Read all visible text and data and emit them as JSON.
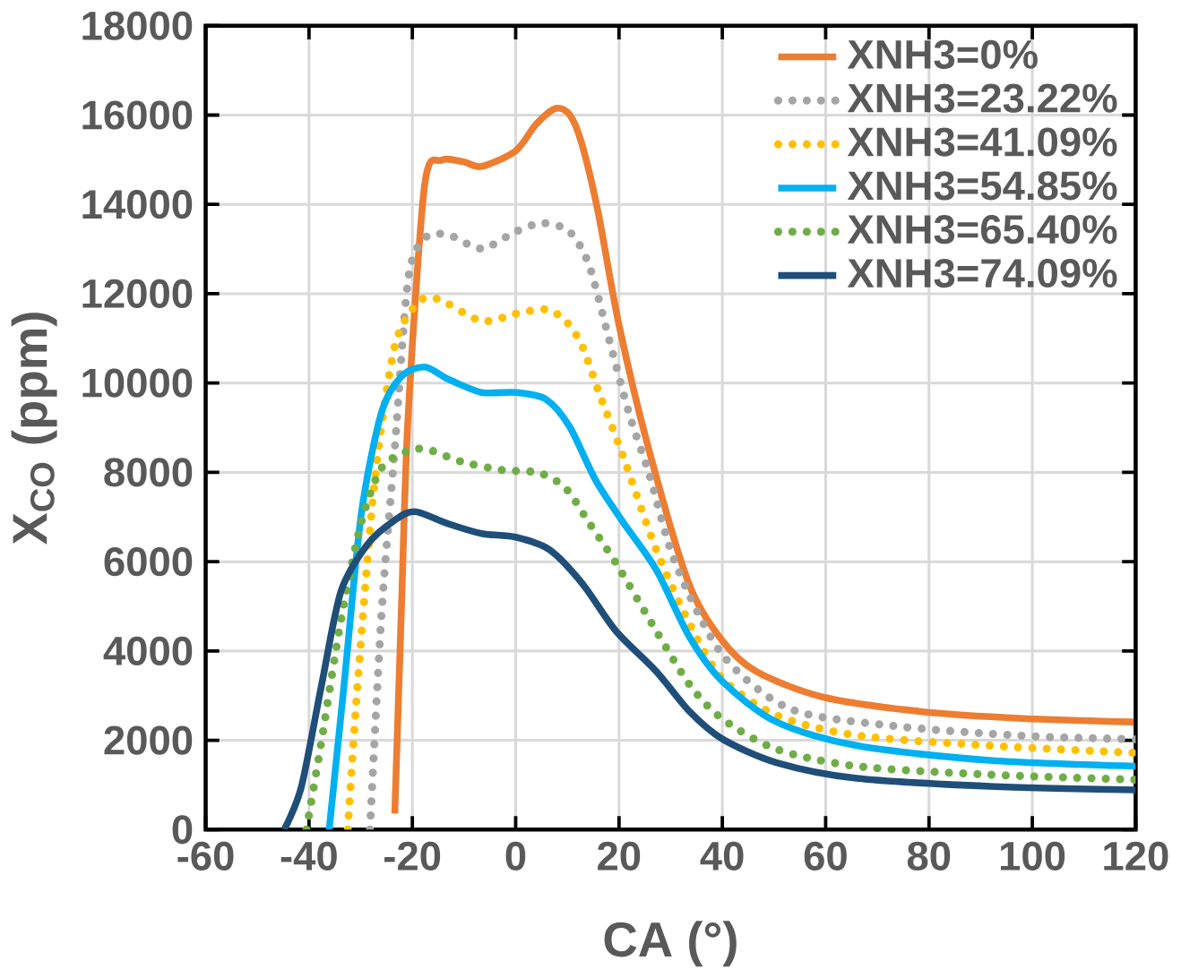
{
  "chart_data": {
    "type": "line",
    "xlabel": "CA (°)",
    "ylabel": "X$_{CO}$ (ppm)",
    "xlim": [
      -60,
      120
    ],
    "xticks": [
      -60,
      -40,
      -20,
      0,
      20,
      40,
      60,
      80,
      100,
      120
    ],
    "ylim": [
      0,
      18000
    ],
    "yticks": [
      0,
      2000,
      4000,
      6000,
      8000,
      10000,
      12000,
      14000,
      16000,
      18000
    ],
    "grid": true,
    "legend": "top right",
    "marker": "none",
    "series": [
      {
        "name": "XNH3=0%",
        "color": "#ed7d31",
        "line_style": "solid",
        "x": [
          -23.4,
          -22.1,
          -20.8,
          -17.6,
          -14.4,
          -10,
          -6.6,
          0,
          4,
          7.8,
          10.5,
          12.8,
          16,
          20,
          25.7,
          33.5,
          40,
          46.5,
          59.4,
          78.8,
          98.2,
          119.6
        ],
        "values": [
          360,
          5000,
          9300,
          14450,
          14990,
          14950,
          14850,
          15200,
          15800,
          16150,
          16000,
          15360,
          13800,
          11300,
          8545,
          5515,
          4230,
          3545,
          2970,
          2640,
          2490,
          2410
        ]
      },
      {
        "name": "XNH3=23.22%",
        "color": "#a5a5a5",
        "line_style": "dotted",
        "x": [
          -28.2,
          -26.0,
          -23.4,
          -20.8,
          -17.6,
          -13.1,
          -6.6,
          0,
          5.2,
          10.4,
          14.2,
          18.1,
          22.0,
          25.9,
          30.9,
          40,
          53,
          72.4,
          98.2,
          117.6,
          120
        ],
        "values": [
          0,
          4760,
          8540,
          12330,
          13240,
          13320,
          13010,
          13390,
          13580,
          13390,
          12640,
          10970,
          9300,
          7940,
          5970,
          3920,
          2710,
          2330,
          2100,
          2030,
          2020
        ]
      },
      {
        "name": "XNH3=41.09%",
        "color": "#ffc000",
        "line_style": "dotted",
        "x": [
          -32.5,
          -30.6,
          -27.3,
          -23.4,
          -18.9,
          -15.0,
          -6.6,
          0,
          5.8,
          9.7,
          12.9,
          16.2,
          20.7,
          27.2,
          33.7,
          40,
          50.5,
          66,
          91.8,
          117.6,
          120
        ],
        "values": [
          0,
          3240,
          7790,
          10820,
          11800,
          11880,
          11390,
          11550,
          11650,
          11390,
          10820,
          9760,
          8390,
          6270,
          4600,
          3390,
          2560,
          2110,
          1880,
          1730,
          1720
        ]
      },
      {
        "name": "XNH3=54.85%",
        "color": "#00b0f0",
        "line_style": "solid",
        "x": [
          -36.1,
          -33.2,
          -29.9,
          -26.0,
          -22.1,
          -17.6,
          -13.1,
          -6.6,
          0,
          5.8,
          10.4,
          15.5,
          20.7,
          27.2,
          33.7,
          40,
          50.5,
          66,
          91.8,
          120
        ],
        "values": [
          0,
          3260,
          7050,
          9330,
          10150,
          10360,
          10090,
          9790,
          9790,
          9640,
          9030,
          7820,
          6900,
          5820,
          4300,
          3320,
          2410,
          1880,
          1550,
          1420
        ]
      },
      {
        "name": "XNH3=65.40%",
        "color": "#70ad47",
        "line_style": "dotted",
        "x": [
          -40.5,
          -37.6,
          -33.8,
          -29.9,
          -26.0,
          -20.8,
          -17,
          -10.5,
          -2.6,
          4.5,
          9.7,
          14.2,
          19.4,
          27.2,
          33.7,
          40,
          50.5,
          66,
          91.8,
          120
        ],
        "values": [
          0,
          1970,
          4700,
          6870,
          8090,
          8480,
          8510,
          8240,
          8050,
          7990,
          7640,
          6870,
          5970,
          4450,
          3240,
          2480,
          1800,
          1420,
          1230,
          1120
        ]
      },
      {
        "name": "XNH3=74.09%",
        "color": "#1f4e79",
        "line_style": "solid",
        "x": [
          -44.8,
          -41.5,
          -37.6,
          -33.8,
          -28.6,
          -23.4,
          -19.5,
          -13.1,
          -6.6,
          0,
          6.5,
          12.9,
          19.4,
          27.2,
          33.7,
          40,
          50.5,
          66,
          91.8,
          120
        ],
        "values": [
          0,
          950,
          3220,
          5340,
          6400,
          6930,
          7120,
          6850,
          6630,
          6550,
          6270,
          5510,
          4450,
          3545,
          2640,
          2030,
          1500,
          1150,
          970,
          890
        ]
      }
    ]
  }
}
